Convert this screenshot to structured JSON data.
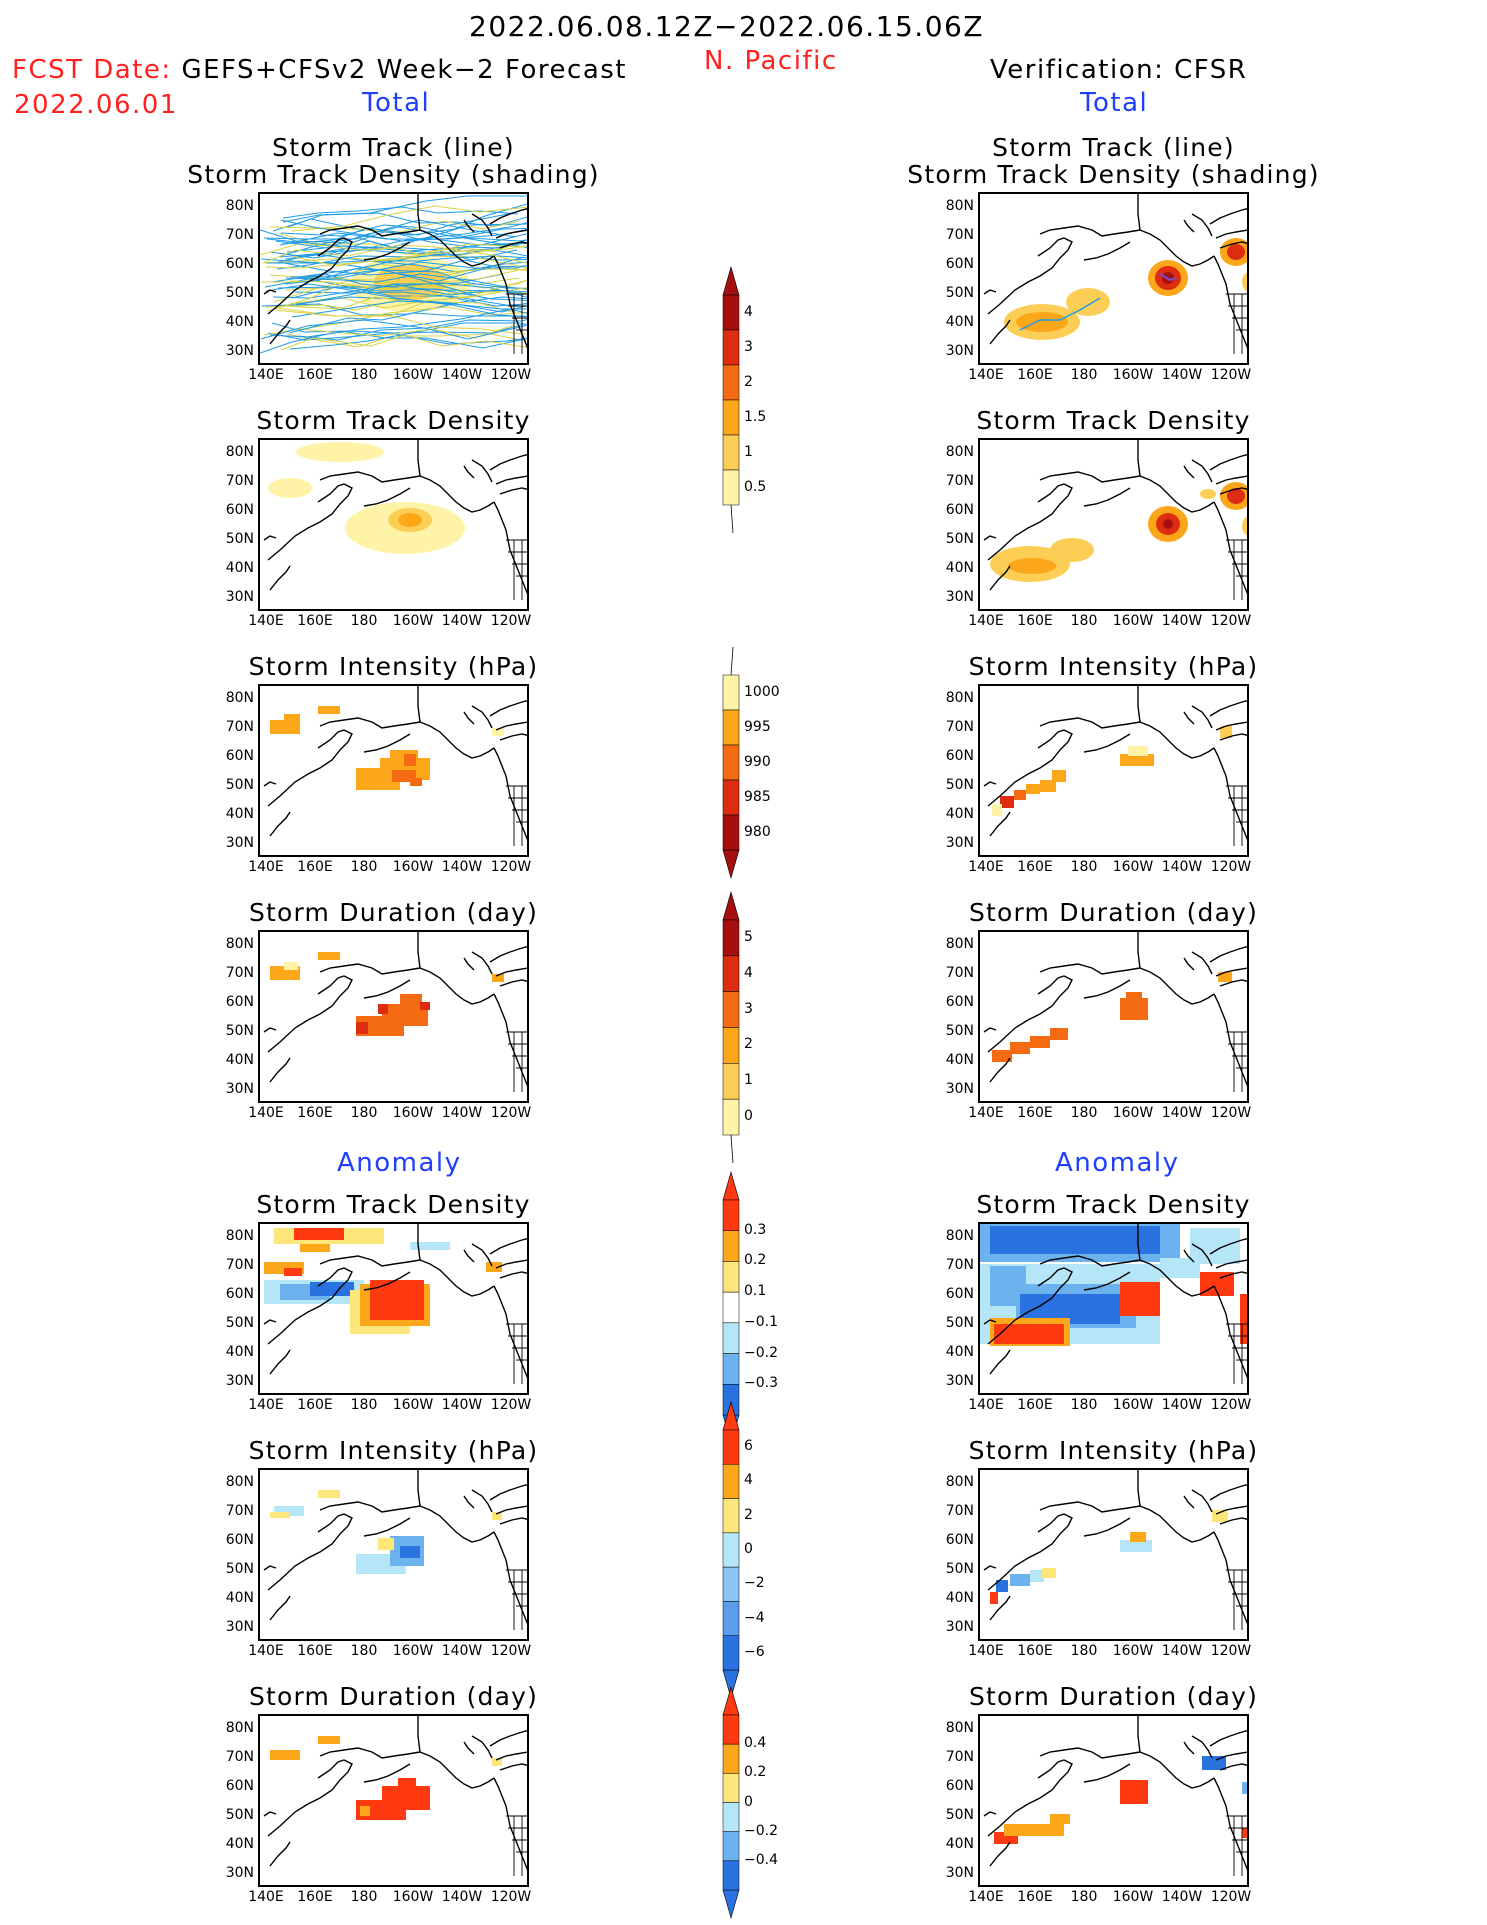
{
  "header": {
    "date_range": "2022.06.08.12Z−2022.06.15.06Z",
    "region": "N. Pacific",
    "fcst_label": "FCST Date:",
    "fcst_model": "GEFS+CFSv2 Week−2 Forecast",
    "fcst_date": "2022.06.01",
    "verification": "Verification: CFSR",
    "section_total": "Total",
    "section_anomaly": "Anomaly"
  },
  "panels": {
    "track_line_1": "Storm Track (line)",
    "track_line_2": "Storm Track Density (shading)",
    "density": "Storm Track Density",
    "intensity": "Storm Intensity (hPa)",
    "duration": "Storm Duration (day)"
  },
  "axes": {
    "lat": [
      "80N",
      "70N",
      "60N",
      "50N",
      "40N",
      "30N"
    ],
    "lon": [
      "140E",
      "160E",
      "180",
      "160W",
      "140W",
      "120W"
    ]
  },
  "colorbars": {
    "density_total": {
      "labels": [
        "4",
        "3",
        "2",
        "1.5",
        "1",
        "0.5"
      ],
      "colors": [
        "#a50f0f",
        "#dd2c10",
        "#f46b12",
        "#fca61a",
        "#fdce55",
        "#fff3a8"
      ]
    },
    "intensity_total": {
      "labels": [
        "1000",
        "995",
        "990",
        "985",
        "980"
      ],
      "colors": [
        "#fff3a8",
        "#fca61a",
        "#f46b12",
        "#dd2c10",
        "#a50f0f"
      ]
    },
    "duration_total": {
      "labels": [
        "5",
        "4",
        "3",
        "2",
        "1",
        "0"
      ],
      "colors": [
        "#a50f0f",
        "#dd2c10",
        "#f46b12",
        "#fca61a",
        "#fdce55",
        "#fff3a8"
      ]
    },
    "density_anom": {
      "labels": [
        "0.3",
        "0.2",
        "0.1",
        "−0.1",
        "−0.2",
        "−0.3"
      ],
      "colors": [
        "#ff3a10",
        "#fca61a",
        "#fde77a",
        "#ffffff",
        "#b5e6f7",
        "#6bb2ef",
        "#2a72e0"
      ]
    },
    "intensity_anom": {
      "labels": [
        "6",
        "4",
        "2",
        "0",
        "−2",
        "−4",
        "−6"
      ],
      "colors": [
        "#ff3a10",
        "#fca61a",
        "#fde77a",
        "#b5e6f7",
        "#8cc4f3",
        "#5c9ced",
        "#2a72e0"
      ]
    },
    "duration_anom": {
      "labels": [
        "0.4",
        "0.2",
        "0",
        "−0.2",
        "−0.4"
      ],
      "colors": [
        "#ff3a10",
        "#fca61a",
        "#fde77a",
        "#b5e6f7",
        "#6bb2ef",
        "#2a72e0"
      ]
    }
  },
  "palette": {
    "red_text": "#ff2020",
    "blue_text": "#1f3fff",
    "track_blue": "#1e9be6",
    "track_yellow": "#d9d247"
  }
}
